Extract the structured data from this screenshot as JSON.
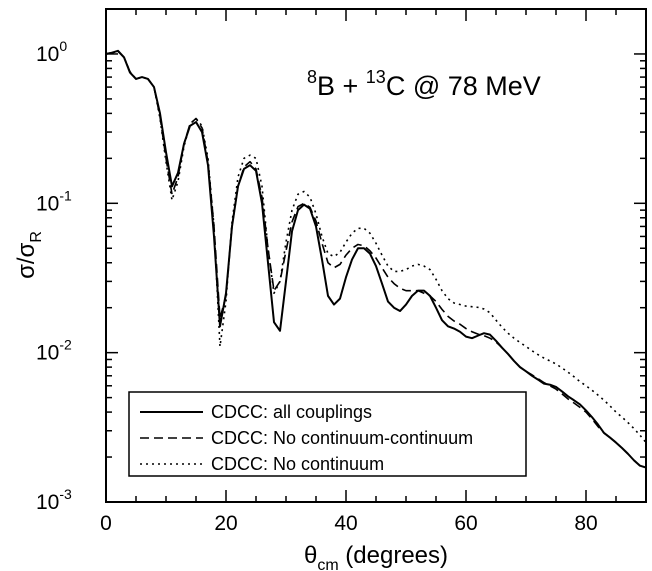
{
  "chart_data": {
    "type": "line",
    "annotation": {
      "pre": "",
      "sup1": "8",
      "mid": "B + ",
      "sup2": "13",
      "post": "C @ 78 MeV"
    },
    "xlabel": {
      "symbol": "θ",
      "sub": "cm",
      "rest": " (degrees)"
    },
    "ylabel": {
      "a": "σ/σ",
      "sub": "R"
    },
    "xlim": [
      0,
      90
    ],
    "ylim": [
      0.001,
      2.0
    ],
    "yscale": "log",
    "x_ticks": [
      {
        "value": 0,
        "label": "0"
      },
      {
        "value": 20,
        "label": "20"
      },
      {
        "value": 40,
        "label": "40"
      },
      {
        "value": 60,
        "label": "60"
      },
      {
        "value": 80,
        "label": "80"
      }
    ],
    "y_ticks": [
      {
        "value": 1,
        "base": "10",
        "exp": "0"
      },
      {
        "value": 0.1,
        "base": "10",
        "exp": "-1"
      },
      {
        "value": 0.01,
        "base": "10",
        "exp": "-2"
      },
      {
        "value": 0.001,
        "base": "10",
        "exp": "-3"
      }
    ],
    "legend_position": "bottom-left",
    "series": [
      {
        "name": "CDCC: all couplings",
        "style": "solid",
        "x": [
          0,
          1,
          2,
          3,
          4,
          5,
          6,
          7,
          8,
          9,
          10,
          11,
          12,
          13,
          14,
          15,
          16,
          17,
          18,
          19,
          20,
          21,
          22,
          23,
          24,
          25,
          26,
          27,
          28,
          29,
          30,
          31,
          32,
          33,
          34,
          35,
          36,
          37,
          38,
          39,
          40,
          41,
          42,
          43,
          44,
          45,
          46,
          47,
          48,
          49,
          50,
          51,
          52,
          53,
          54,
          55,
          56,
          57,
          58,
          59,
          60,
          61,
          62,
          63,
          64,
          65,
          66,
          67,
          68,
          69,
          70,
          71,
          72,
          73,
          74,
          75,
          76,
          77,
          78,
          79,
          80,
          81,
          82,
          83,
          84,
          85,
          86,
          87,
          88,
          89,
          90
        ],
        "y": [
          1.0,
          1.02,
          1.05,
          0.95,
          0.75,
          0.68,
          0.7,
          0.68,
          0.6,
          0.4,
          0.22,
          0.13,
          0.16,
          0.25,
          0.33,
          0.35,
          0.3,
          0.18,
          0.06,
          0.015,
          0.025,
          0.07,
          0.13,
          0.17,
          0.18,
          0.165,
          0.1,
          0.04,
          0.016,
          0.014,
          0.03,
          0.065,
          0.09,
          0.098,
          0.092,
          0.07,
          0.042,
          0.024,
          0.021,
          0.023,
          0.032,
          0.042,
          0.05,
          0.05,
          0.046,
          0.038,
          0.029,
          0.022,
          0.02,
          0.019,
          0.021,
          0.024,
          0.026,
          0.026,
          0.024,
          0.02,
          0.0165,
          0.015,
          0.0145,
          0.0138,
          0.0128,
          0.0125,
          0.013,
          0.0135,
          0.0132,
          0.012,
          0.0108,
          0.0098,
          0.0088,
          0.008,
          0.0075,
          0.007,
          0.0066,
          0.0062,
          0.0061,
          0.0059,
          0.0055,
          0.0051,
          0.0048,
          0.0045,
          0.0041,
          0.0037,
          0.0033,
          0.0029,
          0.0027,
          0.0025,
          0.0023,
          0.0021,
          0.0019,
          0.00175,
          0.0017
        ]
      },
      {
        "name": "CDCC: No continuum-continuum",
        "style": "dashed",
        "x": [
          0,
          1,
          2,
          3,
          4,
          5,
          6,
          7,
          8,
          9,
          10,
          11,
          12,
          13,
          14,
          15,
          16,
          17,
          18,
          19,
          20,
          21,
          22,
          23,
          24,
          25,
          26,
          27,
          28,
          29,
          30,
          31,
          32,
          33,
          34,
          35,
          36,
          37,
          38,
          39,
          40,
          41,
          42,
          43,
          44,
          45,
          46,
          47,
          48,
          49,
          50,
          51,
          52,
          53,
          54,
          55,
          56,
          57,
          58,
          59,
          60,
          61,
          62,
          63,
          64,
          65,
          66,
          67,
          68,
          69,
          70,
          71,
          72,
          73,
          74,
          75,
          76,
          77,
          78,
          79,
          80,
          81,
          82,
          83,
          84,
          85,
          86,
          87,
          88,
          89,
          90
        ],
        "y": [
          1.0,
          1.02,
          1.04,
          0.95,
          0.76,
          0.68,
          0.7,
          0.68,
          0.6,
          0.38,
          0.2,
          0.115,
          0.15,
          0.25,
          0.34,
          0.37,
          0.32,
          0.19,
          0.07,
          0.017,
          0.024,
          0.07,
          0.13,
          0.175,
          0.19,
          0.17,
          0.11,
          0.05,
          0.026,
          0.03,
          0.048,
          0.075,
          0.095,
          0.1,
          0.094,
          0.076,
          0.054,
          0.04,
          0.037,
          0.039,
          0.045,
          0.05,
          0.053,
          0.052,
          0.048,
          0.043,
          0.037,
          0.032,
          0.029,
          0.027,
          0.026,
          0.026,
          0.026,
          0.025,
          0.024,
          0.022,
          0.0195,
          0.0175,
          0.0163,
          0.0155,
          0.0145,
          0.0138,
          0.0133,
          0.013,
          0.0125,
          0.0118,
          0.0108,
          0.0098,
          0.0088,
          0.008,
          0.0075,
          0.0071,
          0.0067,
          0.0063,
          0.006,
          0.0057,
          0.0053,
          0.0049,
          0.0046,
          0.0043,
          0.004,
          0.0036,
          0.0032,
          0.0029,
          0.0027,
          0.0025,
          0.0023,
          0.0021,
          0.0019,
          0.00175,
          0.0017
        ]
      },
      {
        "name": "CDCC: No continuum",
        "style": "dotted",
        "x": [
          0,
          1,
          2,
          3,
          4,
          5,
          6,
          7,
          8,
          9,
          10,
          11,
          12,
          13,
          14,
          15,
          16,
          17,
          18,
          19,
          20,
          21,
          22,
          23,
          24,
          25,
          26,
          27,
          28,
          29,
          30,
          31,
          32,
          33,
          34,
          35,
          36,
          37,
          38,
          39,
          40,
          41,
          42,
          43,
          44,
          45,
          46,
          47,
          48,
          49,
          50,
          51,
          52,
          53,
          54,
          55,
          56,
          57,
          58,
          59,
          60,
          61,
          62,
          63,
          64,
          65,
          66,
          67,
          68,
          69,
          70,
          71,
          72,
          73,
          74,
          75,
          76,
          77,
          78,
          79,
          80,
          81,
          82,
          83,
          84,
          85,
          86,
          87,
          88,
          89,
          90
        ],
        "y": [
          1.0,
          1.02,
          1.04,
          0.95,
          0.76,
          0.68,
          0.7,
          0.68,
          0.6,
          0.37,
          0.19,
          0.105,
          0.14,
          0.24,
          0.34,
          0.37,
          0.33,
          0.2,
          0.07,
          0.011,
          0.022,
          0.075,
          0.15,
          0.2,
          0.21,
          0.2,
          0.13,
          0.05,
          0.025,
          0.03,
          0.055,
          0.09,
          0.115,
          0.12,
          0.11,
          0.085,
          0.06,
          0.046,
          0.044,
          0.047,
          0.055,
          0.063,
          0.068,
          0.068,
          0.063,
          0.054,
          0.045,
          0.038,
          0.035,
          0.035,
          0.036,
          0.038,
          0.039,
          0.038,
          0.036,
          0.031,
          0.026,
          0.023,
          0.0215,
          0.021,
          0.0205,
          0.0203,
          0.0201,
          0.0196,
          0.0185,
          0.0165,
          0.0148,
          0.0135,
          0.0125,
          0.0117,
          0.011,
          0.0103,
          0.0097,
          0.0092,
          0.0088,
          0.0084,
          0.0079,
          0.0074,
          0.0069,
          0.0064,
          0.006,
          0.0056,
          0.0052,
          0.0048,
          0.0044,
          0.004,
          0.0037,
          0.0034,
          0.0031,
          0.0028,
          0.0025
        ]
      }
    ]
  }
}
